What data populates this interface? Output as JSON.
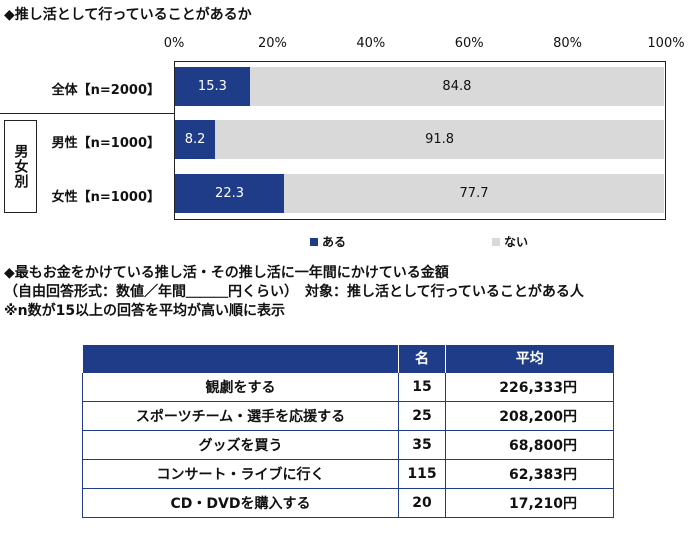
{
  "chart_data": {
    "type": "bar",
    "orientation": "horizontal-stacked",
    "title": "◆推し活として行っていることがあるか",
    "categories": [
      "全体【n=2000】",
      "男性【n=1000】",
      "女性【n=1000】"
    ],
    "group_label": "男女別",
    "xticks": [
      "0%",
      "20%",
      "40%",
      "60%",
      "80%",
      "100%"
    ],
    "xlim": [
      0,
      100
    ],
    "series": [
      {
        "name": "ある",
        "values": [
          15.3,
          8.2,
          22.3
        ],
        "color": "#1f3c88"
      },
      {
        "name": "ない",
        "values": [
          84.8,
          91.8,
          77.7
        ],
        "color": "#d9d9d9"
      }
    ],
    "legend": "bottom"
  },
  "section2": {
    "title": "◆最もお金をかけている推し活・その推し活に一年間にかけている金額",
    "subtitle": "（自由回答形式：数値／年間＿＿＿円くらい）　対象：推し活として行っていることがある人",
    "note": "※n数が15以上の回答を平均が高い順に表示",
    "headers": [
      "",
      "名",
      "平均"
    ],
    "rows": [
      [
        "観劇をする",
        "15",
        "226,333円"
      ],
      [
        "スポーツチーム・選手を応援する",
        "25",
        "208,200円"
      ],
      [
        "グッズを買う",
        "35",
        "68,800円"
      ],
      [
        "コンサート・ライブに行く",
        "115",
        "62,383円"
      ],
      [
        "CD・DVDを購入する",
        "20",
        "17,210円"
      ]
    ]
  }
}
